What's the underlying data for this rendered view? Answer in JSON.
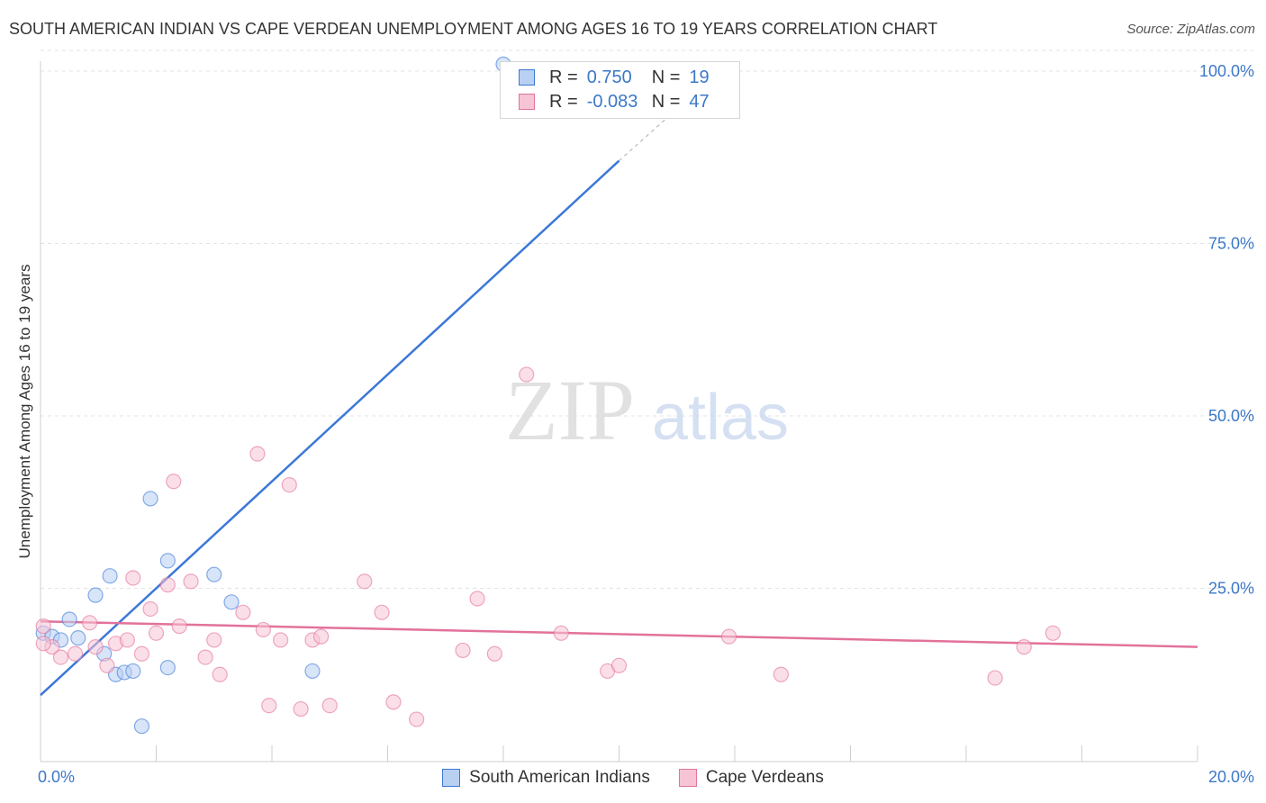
{
  "chart_data": {
    "type": "scatter",
    "title": "SOUTH AMERICAN INDIAN VS CAPE VERDEAN UNEMPLOYMENT AMONG AGES 16 TO 19 YEARS CORRELATION CHART",
    "source": "Source: ZipAtlas.com",
    "ylabel": "Unemployment Among Ages 16 to 19 years",
    "xlabel": "",
    "xlim": [
      0,
      20
    ],
    "ylim": [
      0,
      105
    ],
    "x_tick_labels": {
      "min": "0.0%",
      "max": "20.0%"
    },
    "y_ticks": [
      {
        "value": 25,
        "label": "25.0%"
      },
      {
        "value": 50,
        "label": "50.0%"
      },
      {
        "value": 75,
        "label": "75.0%"
      },
      {
        "value": 100,
        "label": "100.0%"
      }
    ],
    "watermark": {
      "part1": "ZIP",
      "part2": "atlas"
    },
    "series": [
      {
        "name": "South American Indians",
        "color": "#3c78d8",
        "fill": "#b8d0f2",
        "R": "0.750",
        "N": "19",
        "trend": {
          "x0": 0.0,
          "y0": 9.5,
          "x1": 10.0,
          "y1": 87.0,
          "dash_to_x": 11.0,
          "dash_to_y": 94.5
        },
        "points": [
          [
            0.05,
            18.5
          ],
          [
            0.2,
            18.0
          ],
          [
            0.35,
            17.5
          ],
          [
            0.5,
            20.5
          ],
          [
            0.65,
            17.8
          ],
          [
            0.95,
            24.0
          ],
          [
            1.1,
            15.5
          ],
          [
            1.2,
            26.8
          ],
          [
            1.3,
            12.5
          ],
          [
            1.45,
            12.8
          ],
          [
            1.6,
            13.0
          ],
          [
            1.75,
            5.0
          ],
          [
            1.9,
            38.0
          ],
          [
            2.2,
            29.0
          ],
          [
            2.2,
            13.5
          ],
          [
            3.0,
            27.0
          ],
          [
            3.3,
            23.0
          ],
          [
            4.7,
            13.0
          ],
          [
            8.0,
            101.0
          ]
        ]
      },
      {
        "name": "Cape Verdeans",
        "color": "#e2729b",
        "fill": "#f7c4d5",
        "R": "-0.083",
        "N": "47",
        "trend": {
          "x0": 0.0,
          "y0": 20.2,
          "x1": 20.0,
          "y1": 16.5
        },
        "points": [
          [
            0.05,
            19.5
          ],
          [
            0.2,
            16.5
          ],
          [
            0.35,
            15.0
          ],
          [
            0.6,
            15.5
          ],
          [
            0.85,
            20.0
          ],
          [
            0.95,
            16.5
          ],
          [
            1.15,
            13.8
          ],
          [
            1.3,
            17.0
          ],
          [
            1.5,
            17.5
          ],
          [
            1.6,
            26.5
          ],
          [
            1.75,
            15.5
          ],
          [
            1.9,
            22.0
          ],
          [
            2.0,
            18.5
          ],
          [
            2.2,
            25.5
          ],
          [
            2.3,
            40.5
          ],
          [
            2.4,
            19.5
          ],
          [
            2.6,
            26.0
          ],
          [
            2.85,
            15.0
          ],
          [
            3.0,
            17.5
          ],
          [
            3.1,
            12.5
          ],
          [
            3.5,
            21.5
          ],
          [
            3.75,
            44.5
          ],
          [
            3.85,
            19.0
          ],
          [
            3.95,
            8.0
          ],
          [
            4.15,
            17.5
          ],
          [
            4.3,
            40.0
          ],
          [
            4.5,
            7.5
          ],
          [
            4.7,
            17.5
          ],
          [
            4.85,
            18.0
          ],
          [
            5.0,
            8.0
          ],
          [
            5.6,
            26.0
          ],
          [
            5.9,
            21.5
          ],
          [
            6.1,
            8.5
          ],
          [
            6.5,
            6.0
          ],
          [
            7.3,
            16.0
          ],
          [
            7.55,
            23.5
          ],
          [
            7.85,
            15.5
          ],
          [
            8.4,
            56.0
          ],
          [
            9.0,
            18.5
          ],
          [
            9.8,
            13.0
          ],
          [
            10.0,
            13.8
          ],
          [
            11.9,
            18.0
          ],
          [
            12.8,
            12.5
          ],
          [
            16.5,
            12.0
          ],
          [
            17.0,
            16.5
          ],
          [
            17.5,
            18.5
          ],
          [
            0.05,
            17.0
          ]
        ]
      }
    ]
  }
}
